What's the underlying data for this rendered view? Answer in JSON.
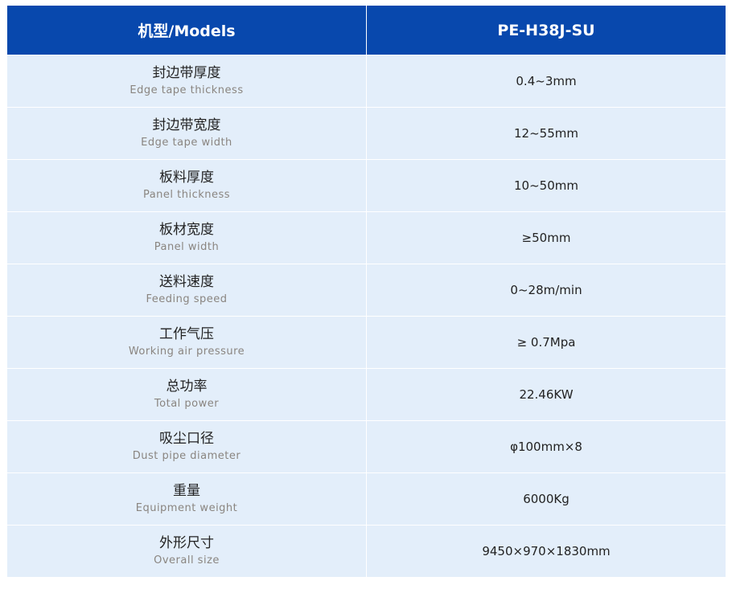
{
  "header": {
    "col1": "机型/Models",
    "col2": "PE-H38J-SU"
  },
  "colors": {
    "header_bg": "#0848ad",
    "row_bg": "#e3eefa"
  },
  "rows": [
    {
      "cn": "封边带厚度",
      "en": "Edge tape thickness",
      "value": "0.4~3mm"
    },
    {
      "cn": "封边带宽度",
      "en": "Edge tape width",
      "value": "12~55mm"
    },
    {
      "cn": "板料厚度",
      "en": "Panel thickness",
      "value": "10~50mm"
    },
    {
      "cn": "板材宽度",
      "en": "Panel width",
      "value": "≥50mm"
    },
    {
      "cn": "送料速度",
      "en": "Feeding speed",
      "value": "0~28m/min"
    },
    {
      "cn": "工作气压",
      "en": "Working air pressure",
      "value": "≥ 0.7Mpa"
    },
    {
      "cn": "总功率",
      "en": "Total power",
      "value": "22.46KW"
    },
    {
      "cn": "吸尘口径",
      "en": "Dust pipe diameter",
      "value": "φ100mm×8"
    },
    {
      "cn": "重量",
      "en": "Equipment weight",
      "value": "6000Kg"
    },
    {
      "cn": "外形尺寸",
      "en": "Overall size",
      "value": "9450×970×1830mm"
    }
  ]
}
